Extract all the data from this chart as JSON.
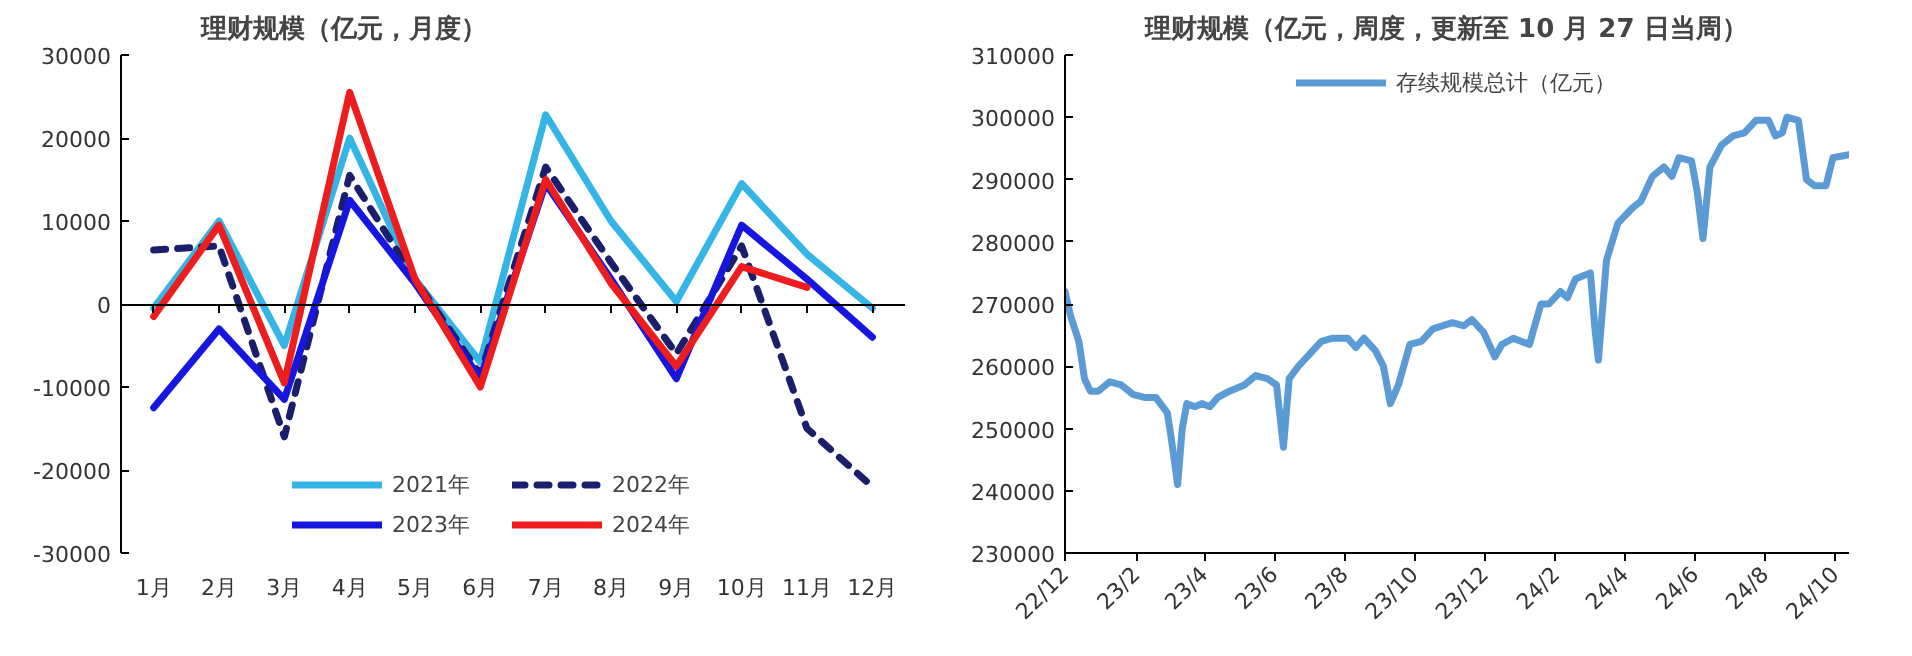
{
  "chart_data": [
    {
      "type": "line",
      "title": "理财规模（亿元，月度）",
      "categories": [
        "1月",
        "2月",
        "3月",
        "4月",
        "5月",
        "6月",
        "7月",
        "8月",
        "9月",
        "10月",
        "11月",
        "12月"
      ],
      "ylim": [
        -30000,
        30000
      ],
      "yticks": [
        -30000,
        -20000,
        -10000,
        0,
        10000,
        20000,
        30000
      ],
      "legend": "bottom",
      "line_style": "solid",
      "series": [
        {
          "name": "2021年",
          "color": "#35b4e6",
          "values": [
            -500,
            10000,
            -5000,
            20000,
            3000,
            -7000,
            22800,
            10000,
            300,
            14500,
            6000,
            -500
          ]
        },
        {
          "name": "2022年",
          "color": "#1b1f6b",
          "line_style": "dashed",
          "values": [
            6500,
            7000,
            -16000,
            15500,
            3000,
            -8500,
            16500,
            5000,
            -6000,
            7000,
            -15000,
            -22000
          ]
        },
        {
          "name": "2023年",
          "color": "#1616e0",
          "values": [
            -12500,
            -3000,
            -11500,
            12500,
            2500,
            -9000,
            14500,
            3000,
            -9000,
            9500,
            3000,
            -4000
          ]
        },
        {
          "name": "2024年",
          "color": "#ee1c1c",
          "values": [
            -1500,
            9500,
            -9500,
            25500,
            3000,
            -10000,
            15000,
            2500,
            -7500,
            4500,
            2000,
            null
          ]
        }
      ]
    },
    {
      "type": "line",
      "title": "理财规模（亿元，周度，更新至 10 月 27 日当周）",
      "grid": false,
      "legend": "top",
      "line_style": "solid",
      "xlim": [
        "2022-12-01",
        "2024-10-13"
      ],
      "xticks": [
        {
          "value": "2022-12-01",
          "label": "22/12"
        },
        {
          "value": "2023-02-01",
          "label": "23/2"
        },
        {
          "value": "2023-04-01",
          "label": "23/4"
        },
        {
          "value": "2023-06-01",
          "label": "23/6"
        },
        {
          "value": "2023-08-01",
          "label": "23/8"
        },
        {
          "value": "2023-10-01",
          "label": "23/10"
        },
        {
          "value": "2023-12-01",
          "label": "23/12"
        },
        {
          "value": "2024-02-01",
          "label": "24/2"
        },
        {
          "value": "2024-04-01",
          "label": "24/4"
        },
        {
          "value": "2024-06-01",
          "label": "24/6"
        },
        {
          "value": "2024-08-01",
          "label": "24/8"
        },
        {
          "value": "2024-10-01",
          "label": "24/10"
        }
      ],
      "ylim": [
        230000,
        310000
      ],
      "yticks": [
        230000,
        240000,
        250000,
        260000,
        270000,
        280000,
        290000,
        300000,
        310000
      ],
      "x": [
        "2022-12-01",
        "2022-12-06",
        "2022-12-13",
        "2022-12-18",
        "2022-12-23",
        "2022-12-30",
        "2023-01-09",
        "2023-01-19",
        "2023-01-29",
        "2023-02-08",
        "2023-02-18",
        "2023-02-28",
        "2023-03-03",
        "2023-03-09",
        "2023-03-13",
        "2023-03-17",
        "2023-03-24",
        "2023-03-30",
        "2023-04-06",
        "2023-04-13",
        "2023-04-23",
        "2023-05-06",
        "2023-05-16",
        "2023-05-26",
        "2023-06-03",
        "2023-06-09",
        "2023-06-14",
        "2023-06-22",
        "2023-07-02",
        "2023-07-12",
        "2023-07-22",
        "2023-08-04",
        "2023-08-11",
        "2023-08-18",
        "2023-08-28",
        "2023-09-04",
        "2023-09-10",
        "2023-09-17",
        "2023-09-27",
        "2023-10-07",
        "2023-10-17",
        "2023-11-03",
        "2023-11-13",
        "2023-11-20",
        "2023-11-30",
        "2023-12-10",
        "2023-12-16",
        "2023-12-26",
        "2024-01-09",
        "2024-01-19",
        "2024-01-26",
        "2024-02-05",
        "2024-02-11",
        "2024-02-18",
        "2024-03-02",
        "2024-03-06",
        "2024-03-09",
        "2024-03-16",
        "2024-03-26",
        "2024-04-08",
        "2024-04-15",
        "2024-04-25",
        "2024-05-05",
        "2024-05-12",
        "2024-05-18",
        "2024-05-29",
        "2024-06-03",
        "2024-06-08",
        "2024-06-14",
        "2024-06-24",
        "2024-07-04",
        "2024-07-14",
        "2024-07-24",
        "2024-08-04",
        "2024-08-10",
        "2024-08-16",
        "2024-08-20",
        "2024-08-30",
        "2024-09-06",
        "2024-09-13",
        "2024-09-23",
        "2024-09-29",
        "2024-10-13"
      ],
      "series": [
        {
          "name": "存续规模总计（亿元）",
          "color": "#5b9bd5",
          "values": [
            272000,
            268000,
            264000,
            258000,
            256000,
            256000,
            257500,
            257000,
            255500,
            255000,
            255000,
            252500,
            249000,
            241000,
            250000,
            254000,
            253500,
            254000,
            253500,
            255000,
            256000,
            257000,
            258500,
            258000,
            257000,
            247000,
            258000,
            260000,
            262000,
            264000,
            264500,
            264500,
            263000,
            264500,
            262500,
            260000,
            254000,
            257000,
            263500,
            264000,
            266000,
            267000,
            266500,
            267500,
            265500,
            261500,
            263500,
            264500,
            263500,
            270000,
            270000,
            272000,
            271000,
            274000,
            275000,
            266000,
            261000,
            277000,
            283000,
            285500,
            286500,
            290500,
            292000,
            290500,
            293500,
            293000,
            288000,
            280500,
            292000,
            295500,
            297000,
            297500,
            299500,
            299500,
            297000,
            297500,
            300000,
            299500,
            290000,
            289000,
            289000,
            293500,
            294000
          ]
        }
      ]
    }
  ]
}
